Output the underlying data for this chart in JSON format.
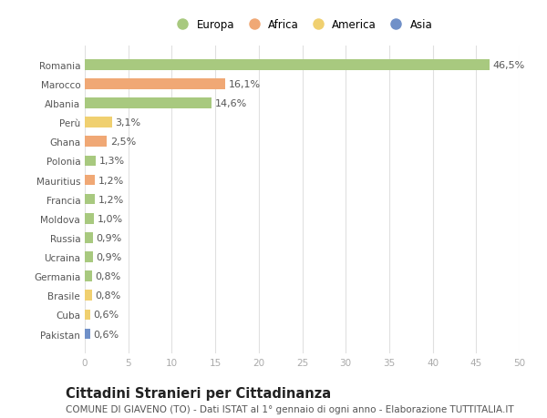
{
  "countries": [
    "Romania",
    "Marocco",
    "Albania",
    "Perù",
    "Ghana",
    "Polonia",
    "Mauritius",
    "Francia",
    "Moldova",
    "Russia",
    "Ucraina",
    "Germania",
    "Brasile",
    "Cuba",
    "Pakistan"
  ],
  "values": [
    46.5,
    16.1,
    14.6,
    3.1,
    2.5,
    1.3,
    1.2,
    1.2,
    1.0,
    0.9,
    0.9,
    0.8,
    0.8,
    0.6,
    0.6
  ],
  "labels": [
    "46,5%",
    "16,1%",
    "14,6%",
    "3,1%",
    "2,5%",
    "1,3%",
    "1,2%",
    "1,2%",
    "1,0%",
    "0,9%",
    "0,9%",
    "0,8%",
    "0,8%",
    "0,6%",
    "0,6%"
  ],
  "continents": [
    "Europa",
    "Africa",
    "Europa",
    "America",
    "Africa",
    "Europa",
    "Africa",
    "Europa",
    "Europa",
    "Europa",
    "Europa",
    "Europa",
    "America",
    "America",
    "Asia"
  ],
  "continent_colors": {
    "Europa": "#a8c97f",
    "Africa": "#f0a875",
    "America": "#f0d070",
    "Asia": "#7090c8"
  },
  "legend_order": [
    "Europa",
    "Africa",
    "America",
    "Asia"
  ],
  "title": "Cittadini Stranieri per Cittadinanza",
  "subtitle": "COMUNE DI GIAVENO (TO) - Dati ISTAT al 1° gennaio di ogni anno - Elaborazione TUTTITALIA.IT",
  "xlim": [
    0,
    50
  ],
  "xticks": [
    0,
    5,
    10,
    15,
    20,
    25,
    30,
    35,
    40,
    45,
    50
  ],
  "bg_color": "#ffffff",
  "plot_bg_color": "#ffffff",
  "grid_color": "#e0e0e0",
  "bar_height": 0.55,
  "label_fontsize": 8,
  "title_fontsize": 10.5,
  "subtitle_fontsize": 7.5,
  "tick_fontsize": 7.5,
  "legend_fontsize": 8.5,
  "ytick_fontsize": 7.5
}
